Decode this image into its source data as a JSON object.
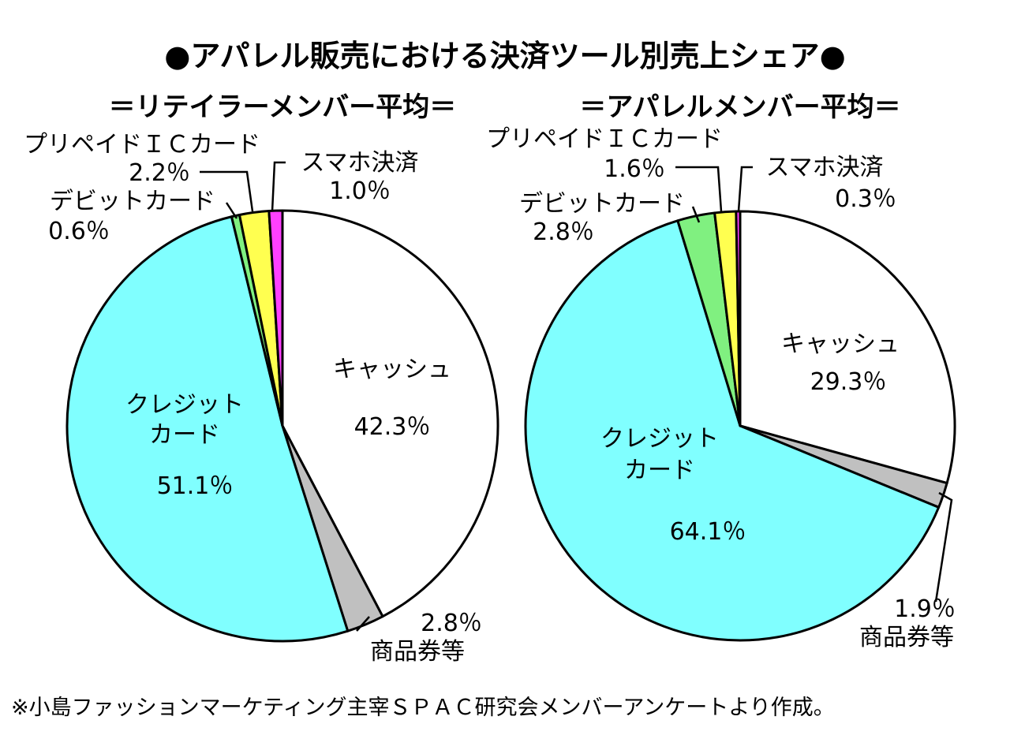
{
  "title": "●アパレル販売における決済ツール別売上シェア●",
  "footnote": "※小島ファッションマーケティング主宰ＳＰＡＣ研究会メンバーアンケートより作成。",
  "chart_data": [
    {
      "type": "pie",
      "title": "＝リテイラーメンバー平均＝",
      "slices": [
        {
          "name": "キャッシュ",
          "value": 42.3,
          "value_label": "42.3％",
          "color": "#ffffff"
        },
        {
          "name": "商品券等",
          "value": 2.8,
          "value_label": "2.8％",
          "color": "#c0c0c0"
        },
        {
          "name_lines": [
            "クレジット",
            "カード"
          ],
          "value": 51.1,
          "value_label": "51.1％",
          "color": "#80ffff"
        },
        {
          "name": "デビットカード",
          "value": 0.6,
          "value_label": "0.6％",
          "color": "#80f080"
        },
        {
          "name": "プリペイドＩＣカード",
          "value": 2.2,
          "value_label": "2.2％",
          "color": "#ffff50"
        },
        {
          "name": "スマホ決済",
          "value": 1.0,
          "value_label": "1.0％",
          "color": "#ff40ff"
        }
      ]
    },
    {
      "type": "pie",
      "title": "＝アパレルメンバー平均＝",
      "slices": [
        {
          "name": "キャッシュ",
          "value": 29.3,
          "value_label": "29.3％",
          "color": "#ffffff"
        },
        {
          "name": "商品券等",
          "value": 1.9,
          "value_label": "1.9％",
          "color": "#c0c0c0"
        },
        {
          "name_lines": [
            "クレジット",
            "カード"
          ],
          "value": 64.1,
          "value_label": "64.1％",
          "color": "#80ffff"
        },
        {
          "name": "デビットカード",
          "value": 2.8,
          "value_label": "2.8％",
          "color": "#80f080"
        },
        {
          "name": "プリペイドＩＣカード",
          "value": 1.6,
          "value_label": "1.6％",
          "color": "#ffff50"
        },
        {
          "name": "スマホ決済",
          "value": 0.3,
          "value_label": "0.3％",
          "color": "#ff40ff"
        }
      ]
    }
  ]
}
